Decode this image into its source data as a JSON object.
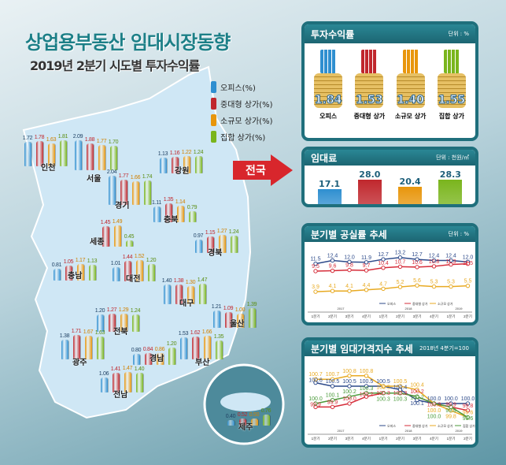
{
  "header": {
    "title": "상업용부동산 임대시장동향",
    "subtitle": "2019년 2분기 시도별 투자수익률"
  },
  "legend": [
    "오피스(%)",
    "중대형 상가(%)",
    "소규모 상가(%)",
    "집합 상가(%)"
  ],
  "colors": {
    "office": "#2f8fd0",
    "mid_large": "#c0272d",
    "small": "#e8960c",
    "collective": "#7ab51d",
    "panel": "#1f6f7c"
  },
  "national_label": "전국",
  "chart_data": [
    {
      "type": "bar",
      "title": "2019년 2분기 시도별 투자수익률",
      "series_names": [
        "오피스",
        "중대형 상가",
        "소규모 상가",
        "집합 상가"
      ],
      "regions": [
        {
          "name": "인천",
          "values": [
            1.72,
            1.78,
            1.63,
            1.81
          ]
        },
        {
          "name": "서울",
          "values": [
            2.09,
            1.88,
            1.77,
            1.7
          ]
        },
        {
          "name": "경기",
          "values": [
            2.04,
            1.77,
            1.66,
            1.74
          ]
        },
        {
          "name": "강원",
          "values": [
            1.13,
            1.16,
            1.22,
            1.24
          ]
        },
        {
          "name": "충북",
          "values": [
            1.11,
            1.35,
            1.14,
            0.79
          ]
        },
        {
          "name": "세종",
          "values": [
            null,
            1.45,
            1.49,
            0.45
          ]
        },
        {
          "name": "경북",
          "values": [
            0.97,
            1.15,
            1.27,
            1.24
          ]
        },
        {
          "name": "충남",
          "values": [
            0.81,
            1.05,
            1.17,
            1.13
          ]
        },
        {
          "name": "대전",
          "values": [
            1.01,
            1.44,
            1.52,
            1.2
          ]
        },
        {
          "name": "대구",
          "values": [
            1.4,
            1.38,
            1.3,
            1.47
          ]
        },
        {
          "name": "울산",
          "values": [
            1.21,
            1.09,
            1.0,
            1.39
          ]
        },
        {
          "name": "전북",
          "values": [
            1.2,
            1.27,
            1.29,
            1.24
          ]
        },
        {
          "name": "광주",
          "values": [
            1.38,
            1.71,
            1.67,
            1.63
          ]
        },
        {
          "name": "경남",
          "values": [
            0.8,
            0.84,
            0.86,
            1.2
          ]
        },
        {
          "name": "부산",
          "values": [
            1.53,
            1.62,
            1.66,
            1.35
          ]
        },
        {
          "name": "전남",
          "values": [
            1.06,
            1.41,
            1.47,
            1.4
          ]
        },
        {
          "name": "제주",
          "values": [
            0.4,
            0.52,
            0.5,
            0.76
          ]
        }
      ]
    },
    {
      "type": "bar",
      "title": "투자수익률",
      "unit": "단위 : %",
      "categories": [
        "오피스",
        "중대형 상가",
        "소규모 상가",
        "집합 상가"
      ],
      "values": [
        1.84,
        1.53,
        1.4,
        1.55
      ]
    },
    {
      "type": "bar",
      "title": "임대료",
      "unit": "단위 : 천원/㎡",
      "categories": [
        "오피스",
        "중대형 상가",
        "소규모 상가",
        "집합 상가"
      ],
      "values": [
        17.1,
        28.0,
        20.4,
        28.3
      ]
    },
    {
      "type": "line",
      "title": "분기별 공실률 추세",
      "unit": "단위 : %",
      "x": [
        "1분기",
        "2분기",
        "3분기",
        "4분기",
        "1분기",
        "2분기",
        "3분기",
        "4분기",
        "1분기",
        "2분기"
      ],
      "years": [
        "2017",
        "2018",
        "2019"
      ],
      "series": [
        {
          "name": "오피스",
          "values": [
            11.5,
            12.4,
            12.0,
            11.9,
            12.7,
            13.2,
            12.7,
            12.4,
            12.4,
            12.0
          ]
        },
        {
          "name": "중대형 상가",
          "values": [
            9.5,
            9.6,
            9.8,
            9.7,
            10.4,
            10.7,
            10.6,
            10.8,
            11.3,
            11.5
          ]
        },
        {
          "name": "소규모 상가",
          "values": [
            3.9,
            4.1,
            4.1,
            4.4,
            4.7,
            5.2,
            5.6,
            5.3,
            5.3,
            5.5
          ]
        }
      ],
      "ylim": [
        2,
        14
      ]
    },
    {
      "type": "line",
      "title": "분기별 임대가격지수 추세",
      "unit": "2018년 4분기=100",
      "x": [
        "1분기",
        "2분기",
        "3분기",
        "4분기",
        "1분기",
        "2분기",
        "3분기",
        "4분기",
        "1분기",
        "2분기"
      ],
      "years": [
        "2017",
        "2018",
        "2019"
      ],
      "series": [
        {
          "name": "오피스",
          "values": [
            100.6,
            100.5,
            100.5,
            100.5,
            100.5,
            100.4,
            100.1,
            100.0,
            100.0,
            100.0
          ]
        },
        {
          "name": "중대형 상가",
          "values": [
            99.9,
            99.9,
            100.0,
            100.2,
            100.3,
            100.3,
            100.2,
            100.0,
            99.9,
            99.8
          ]
        },
        {
          "name": "소규모 상가",
          "values": [
            100.7,
            100.7,
            100.8,
            100.8,
            100.5,
            100.5,
            100.4,
            100.0,
            99.8,
            99.6
          ]
        },
        {
          "name": "집합 상가",
          "values": [
            100.0,
            100.1,
            100.2,
            100.3,
            100.3,
            100.3,
            100.2,
            100.0,
            99.9,
            99.6
          ]
        }
      ],
      "ylim": [
        99.5,
        101.0
      ]
    }
  ]
}
